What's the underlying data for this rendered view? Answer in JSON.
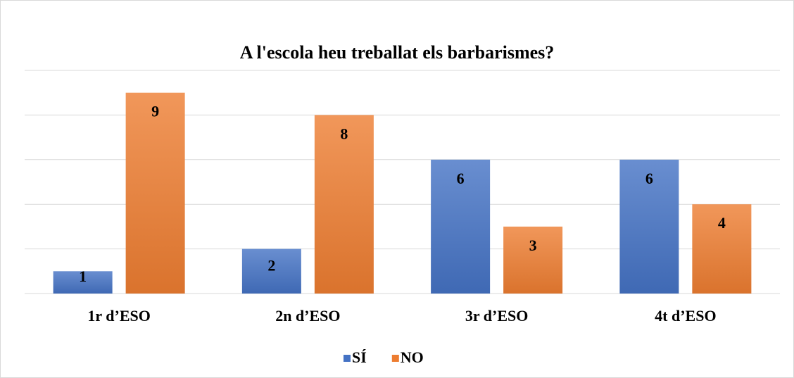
{
  "chart_data": {
    "type": "bar",
    "title": "A l'escola heu treballat els barbarismes?",
    "categories": [
      "1r d’ESO",
      "2n d’ESO",
      "3r d’ESO",
      "4t d’ESO"
    ],
    "series": [
      {
        "name": "SÍ",
        "color": "#4472c4",
        "values": [
          1,
          2,
          6,
          6
        ]
      },
      {
        "name": "NO",
        "color": "#ed7d31",
        "values": [
          9,
          8,
          3,
          4
        ]
      }
    ],
    "ylim": [
      0,
      10
    ],
    "yticks": [
      0,
      2,
      4,
      6,
      8,
      10
    ],
    "grid": true,
    "legend": "bottom"
  }
}
